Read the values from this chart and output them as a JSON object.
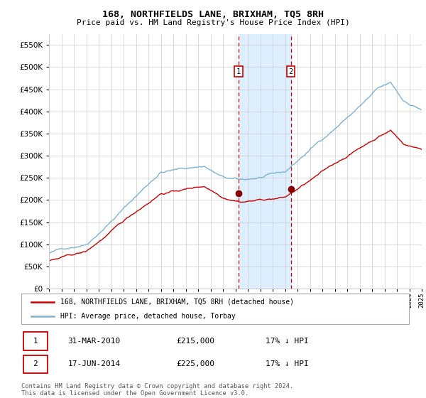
{
  "title": "168, NORTHFIELDS LANE, BRIXHAM, TQ5 8RH",
  "subtitle": "Price paid vs. HM Land Registry's House Price Index (HPI)",
  "legend_line1": "168, NORTHFIELDS LANE, BRIXHAM, TQ5 8RH (detached house)",
  "legend_line2": "HPI: Average price, detached house, Torbay",
  "transaction1_date": "31-MAR-2010",
  "transaction1_price": 215000,
  "transaction1_hpi": "17% ↓ HPI",
  "transaction2_date": "17-JUN-2014",
  "transaction2_price": 225000,
  "transaction2_hpi": "17% ↓ HPI",
  "footnote": "Contains HM Land Registry data © Crown copyright and database right 2024.\nThis data is licensed under the Open Government Licence v3.0.",
  "hpi_color": "#7fb3d3",
  "price_color": "#cc0000",
  "marker_color": "#880000",
  "vline_color": "#cc0000",
  "shade_color": "#ddeeff",
  "grid_color": "#cccccc",
  "bg_color": "#ffffff",
  "ylim": [
    0,
    575000
  ],
  "yticks": [
    0,
    50000,
    100000,
    150000,
    200000,
    250000,
    300000,
    350000,
    400000,
    450000,
    500000,
    550000
  ],
  "start_year": 1995,
  "end_year": 2025,
  "transaction1_x": 2010.25,
  "transaction2_x": 2014.46
}
